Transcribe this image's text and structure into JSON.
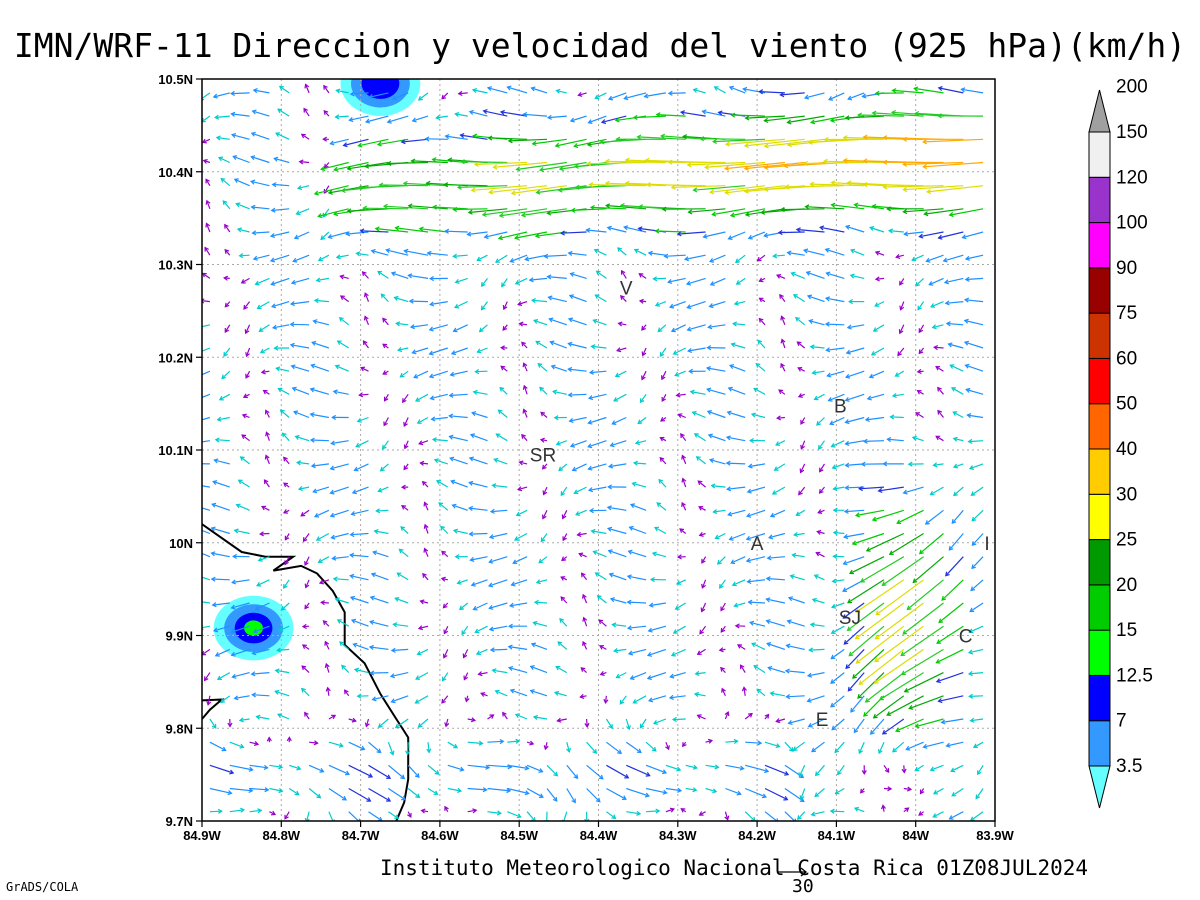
{
  "title": "IMN/WRF-11 Direccion y velocidad del viento (925 hPa)(km/h)",
  "footer": "Instituto Meteorologico Nacional Costa Rica 01Z08JUL2024",
  "credit": "GrADS/COLA",
  "reference_vector_label": "30",
  "chart_data": {
    "type": "vector-field",
    "title": "IMN/WRF-11 Direccion y velocidad del viento (925 hPa)(km/h)",
    "xlim": [
      -84.9,
      -83.9
    ],
    "ylim": [
      9.7,
      10.5
    ],
    "x_ticks": [
      {
        "value": -84.9,
        "label": "84.9W"
      },
      {
        "value": -84.8,
        "label": "84.8W"
      },
      {
        "value": -84.7,
        "label": "84.7W"
      },
      {
        "value": -84.6,
        "label": "84.6W"
      },
      {
        "value": -84.5,
        "label": "84.5W"
      },
      {
        "value": -84.4,
        "label": "84.4W"
      },
      {
        "value": -84.3,
        "label": "84.3W"
      },
      {
        "value": -84.2,
        "label": "84.2W"
      },
      {
        "value": -84.1,
        "label": "84.1W"
      },
      {
        "value": -84.0,
        "label": "84W"
      },
      {
        "value": -83.9,
        "label": "83.9W"
      }
    ],
    "y_ticks": [
      {
        "value": 9.7,
        "label": "9.7N"
      },
      {
        "value": 9.8,
        "label": "9.8N"
      },
      {
        "value": 9.9,
        "label": "9.9N"
      },
      {
        "value": 10.0,
        "label": "10N"
      },
      {
        "value": 10.1,
        "label": "10.1N"
      },
      {
        "value": 10.2,
        "label": "10.2N"
      },
      {
        "value": 10.3,
        "label": "10.3N"
      },
      {
        "value": 10.4,
        "label": "10.4N"
      },
      {
        "value": 10.5,
        "label": "10.5N"
      }
    ],
    "grid": true,
    "colorbar": {
      "labels": [
        "3.5",
        "7",
        "12.5",
        "15",
        "20",
        "25",
        "30",
        "40",
        "50",
        "60",
        "75",
        "90",
        "100",
        "120",
        "150",
        "200"
      ],
      "colors": [
        "#66ffff",
        "#3399ff",
        "#0000ff",
        "#00ff00",
        "#00cc00",
        "#009900",
        "#ffff00",
        "#ffcc00",
        "#ff6600",
        "#ff0000",
        "#cc3300",
        "#990000",
        "#ff00ff",
        "#9933cc",
        "#f0f0f0",
        "#a0a0a0"
      ]
    },
    "place_labels": [
      {
        "text": "V",
        "lon": -84.365,
        "lat": 10.275
      },
      {
        "text": "B",
        "lon": -84.095,
        "lat": 10.148
      },
      {
        "text": "SR",
        "lon": -84.47,
        "lat": 10.095
      },
      {
        "text": "A",
        "lon": -84.2,
        "lat": 10.0
      },
      {
        "text": "I",
        "lon": -83.91,
        "lat": 10.0
      },
      {
        "text": "SJ",
        "lon": -84.083,
        "lat": 9.92
      },
      {
        "text": "C",
        "lon": -83.937,
        "lat": 9.9
      },
      {
        "text": "E",
        "lon": -84.118,
        "lat": 9.81
      }
    ],
    "coastline": [
      [
        [
          -84.9,
          10.02
        ],
        [
          -84.85,
          9.99
        ],
        [
          -84.82,
          9.985
        ],
        [
          -84.785,
          9.985
        ],
        [
          -84.81,
          9.97
        ],
        [
          -84.775,
          9.975
        ],
        [
          -84.755,
          9.967
        ],
        [
          -84.735,
          9.948
        ],
        [
          -84.72,
          9.925
        ],
        [
          -84.72,
          9.89
        ],
        [
          -84.695,
          9.87
        ],
        [
          -84.675,
          9.837
        ],
        [
          -84.655,
          9.81
        ],
        [
          -84.64,
          9.79
        ],
        [
          -84.64,
          9.77
        ],
        [
          -84.64,
          9.745
        ],
        [
          -84.645,
          9.72
        ],
        [
          -84.655,
          9.7
        ]
      ],
      [
        [
          -84.9,
          9.81
        ],
        [
          -84.89,
          9.82
        ],
        [
          -84.875,
          9.831
        ],
        [
          -84.9,
          9.83
        ]
      ]
    ],
    "wind_regions": [
      {
        "name": "jet-north",
        "speed_range_kmh": [
          30,
          60
        ],
        "direction": "from east (westward flow)"
      },
      {
        "name": "caribbean-slope",
        "speed_range_kmh": [
          15,
          50
        ],
        "direction": "from northeast"
      },
      {
        "name": "pacific-southwest",
        "speed_range_kmh": [
          7,
          25
        ],
        "direction": "southeasterly to easterly"
      },
      {
        "name": "central",
        "speed_range_kmh": [
          0,
          12.5
        ],
        "direction": "variable light"
      }
    ],
    "shaded_speed_contours": [
      {
        "lon": -84.835,
        "lat": 9.908,
        "max_class": "15"
      },
      {
        "lon": -84.675,
        "lat": 10.495,
        "max_class": "12.5"
      }
    ]
  }
}
